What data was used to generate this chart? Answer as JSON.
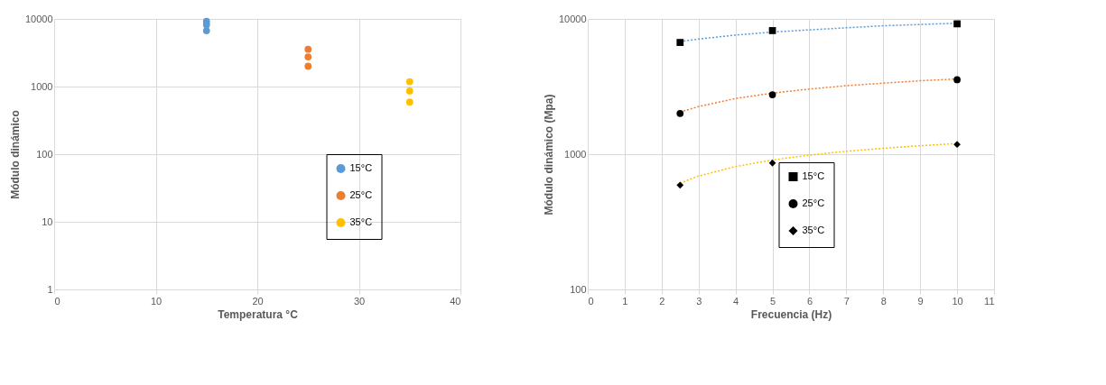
{
  "chart_data": [
    {
      "type": "scatter",
      "xlabel": "Temperatura °C",
      "ylabel": "Módulo dinámico",
      "log": "y",
      "grid": true,
      "legend": "bottom right",
      "marker": "circle",
      "xlim": [
        0,
        40
      ],
      "xticks": [
        0,
        10,
        20,
        30,
        40
      ],
      "ylim": [
        1,
        10000
      ],
      "yticks": [
        1,
        10,
        100,
        1000,
        10000
      ],
      "series": [
        {
          "name": "15°C",
          "color": "#5b9bd5",
          "x": [
            15,
            15,
            15
          ],
          "values": [
            6700,
            8200,
            9200
          ]
        },
        {
          "name": "25°C",
          "color": "#ed7d31",
          "x": [
            25,
            25,
            25
          ],
          "values": [
            2000,
            2750,
            3550
          ]
        },
        {
          "name": "35°C",
          "color": "#ffc000",
          "x": [
            35,
            35,
            35
          ],
          "values": [
            590,
            860,
            1180
          ]
        }
      ]
    },
    {
      "type": "scatter",
      "xlabel": "Frecuencia (Hz)",
      "ylabel": "Módulo dinámico (Mpa)",
      "log": "y",
      "grid": true,
      "legend": "bottom",
      "xlim": [
        0,
        11
      ],
      "xticks": [
        0,
        1,
        2,
        3,
        4,
        5,
        6,
        7,
        8,
        9,
        10,
        11
      ],
      "ylim": [
        100,
        10000
      ],
      "yticks": [
        100,
        1000,
        10000
      ],
      "series": [
        {
          "type": "line",
          "line_style": "dotted",
          "marker": "none",
          "color": "#5b9bd5",
          "x": [
            2.5,
            3,
            4,
            5,
            6,
            7,
            8,
            9,
            10
          ],
          "values": [
            6800,
            7100,
            7600,
            8000,
            8300,
            8600,
            8900,
            9100,
            9300
          ]
        },
        {
          "type": "line",
          "line_style": "dotted",
          "marker": "none",
          "color": "#ed7d31",
          "x": [
            2.5,
            3,
            4,
            5,
            6,
            7,
            8,
            9,
            10
          ],
          "values": [
            2050,
            2250,
            2580,
            2830,
            3030,
            3210,
            3350,
            3490,
            3600
          ]
        },
        {
          "type": "line",
          "line_style": "dotted",
          "marker": "none",
          "color": "#ffc000",
          "x": [
            2.5,
            3,
            4,
            5,
            6,
            7,
            8,
            9,
            10
          ],
          "values": [
            610,
            690,
            810,
            905,
            985,
            1050,
            1105,
            1155,
            1200
          ]
        },
        {
          "name": "15°C",
          "marker": "square",
          "color": "#000000",
          "x": [
            2.5,
            5,
            10
          ],
          "values": [
            6700,
            8200,
            9200
          ]
        },
        {
          "name": "25°C",
          "marker": "circle",
          "color": "#000000",
          "x": [
            2.5,
            5,
            10
          ],
          "values": [
            2000,
            2750,
            3550
          ]
        },
        {
          "name": "35°C",
          "marker": "diamond",
          "color": "#000000",
          "x": [
            2.5,
            5,
            10
          ],
          "values": [
            590,
            860,
            1180
          ]
        }
      ]
    }
  ]
}
